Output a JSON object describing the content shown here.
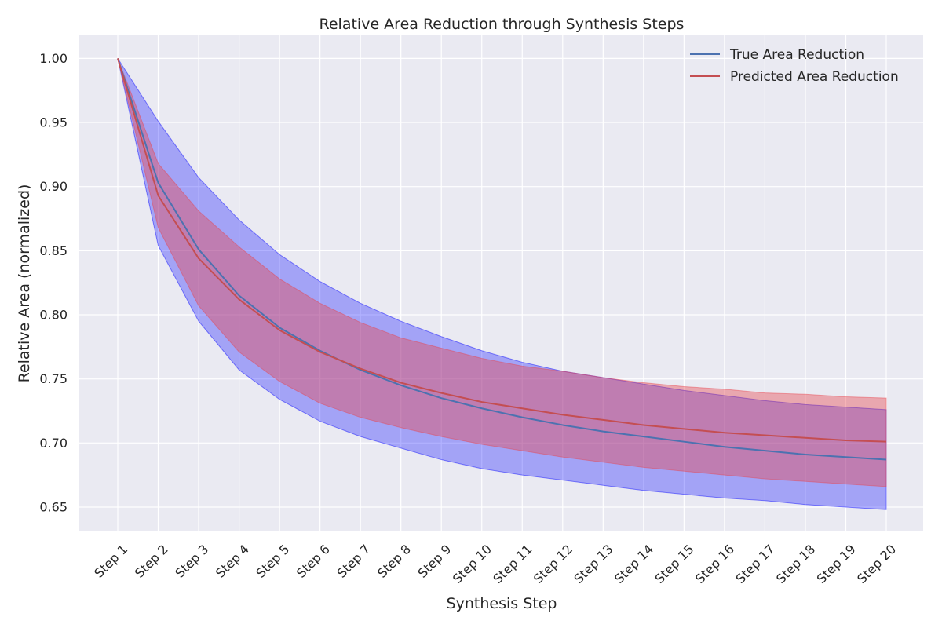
{
  "chart_data": {
    "type": "line",
    "title": "Relative Area Reduction through Synthesis Steps",
    "xlabel": "Synthesis Step",
    "ylabel": "Relative Area (normalized)",
    "categories": [
      "Step 1",
      "Step 2",
      "Step 3",
      "Step 4",
      "Step 5",
      "Step 6",
      "Step 7",
      "Step 8",
      "Step 9",
      "Step 10",
      "Step 11",
      "Step 12",
      "Step 13",
      "Step 14",
      "Step 15",
      "Step 16",
      "Step 17",
      "Step 18",
      "Step 19",
      "Step 20"
    ],
    "ylim": [
      0.631,
      1.018
    ],
    "yticks": [
      0.65,
      0.7,
      0.75,
      0.8,
      0.85,
      0.9,
      0.95,
      1.0
    ],
    "ytick_labels": [
      "0.65",
      "0.70",
      "0.75",
      "0.80",
      "0.85",
      "0.90",
      "0.95",
      "1.00"
    ],
    "grid": true,
    "legend_position": "top-right",
    "series": [
      {
        "name": "True Area Reduction",
        "color": "#4c72b0",
        "band_color": "#0000ff",
        "values": [
          1.0,
          0.903,
          0.851,
          0.815,
          0.79,
          0.772,
          0.757,
          0.745,
          0.735,
          0.727,
          0.72,
          0.714,
          0.709,
          0.705,
          0.701,
          0.697,
          0.694,
          0.691,
          0.689,
          0.687
        ],
        "upper": [
          1.0,
          0.951,
          0.907,
          0.874,
          0.847,
          0.826,
          0.809,
          0.795,
          0.783,
          0.772,
          0.763,
          0.756,
          0.751,
          0.746,
          0.741,
          0.737,
          0.733,
          0.73,
          0.728,
          0.726
        ],
        "lower": [
          1.0,
          0.854,
          0.795,
          0.757,
          0.734,
          0.717,
          0.705,
          0.696,
          0.687,
          0.68,
          0.675,
          0.671,
          0.667,
          0.663,
          0.66,
          0.657,
          0.655,
          0.652,
          0.65,
          0.648
        ]
      },
      {
        "name": "Predicted Area Reduction",
        "color": "#c44e52",
        "band_color": "#e8434b",
        "values": [
          1.0,
          0.893,
          0.844,
          0.812,
          0.788,
          0.771,
          0.758,
          0.747,
          0.739,
          0.732,
          0.727,
          0.722,
          0.718,
          0.714,
          0.711,
          0.708,
          0.706,
          0.704,
          0.702,
          0.701
        ],
        "upper": [
          1.0,
          0.918,
          0.881,
          0.853,
          0.828,
          0.809,
          0.794,
          0.782,
          0.774,
          0.766,
          0.76,
          0.756,
          0.751,
          0.747,
          0.744,
          0.742,
          0.739,
          0.738,
          0.736,
          0.735
        ],
        "lower": [
          1.0,
          0.868,
          0.807,
          0.771,
          0.748,
          0.731,
          0.72,
          0.712,
          0.705,
          0.699,
          0.694,
          0.689,
          0.685,
          0.681,
          0.678,
          0.675,
          0.672,
          0.67,
          0.668,
          0.666
        ]
      }
    ]
  }
}
